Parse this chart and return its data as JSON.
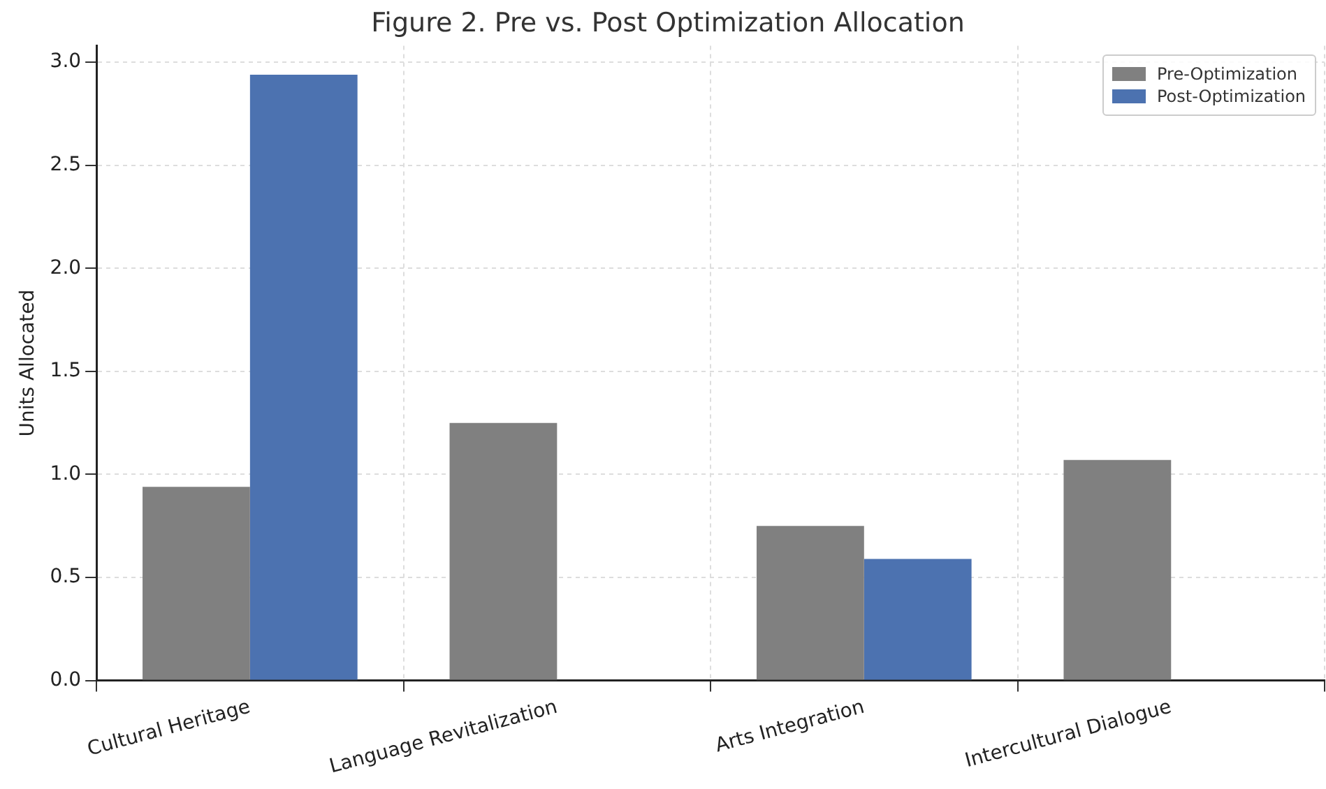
{
  "chart_data": {
    "type": "bar",
    "title": "Figure 2. Pre vs. Post Optimization Allocation",
    "ylabel": "Units Allocated",
    "categories": [
      "Cultural Heritage",
      "Language Revitalization",
      "Arts Integration",
      "Intercultural Dialogue"
    ],
    "series": [
      {
        "name": "Pre-Optimization",
        "color": "#808080",
        "values": [
          0.94,
          1.25,
          0.75,
          1.07
        ]
      },
      {
        "name": "Post-Optimization",
        "color": "#4c72b0",
        "values": [
          2.94,
          0,
          0.59,
          0
        ]
      }
    ],
    "ylim": [
      0,
      3.08
    ],
    "yticks": [
      {
        "value": 0,
        "label": "0.0"
      },
      0.5,
      {
        "value": 1,
        "label": "1.0"
      },
      1.5,
      {
        "value": 2,
        "label": "2.0"
      },
      2.5,
      {
        "value": 3,
        "label": "3.0"
      }
    ],
    "grid": true,
    "legend": "top right"
  }
}
